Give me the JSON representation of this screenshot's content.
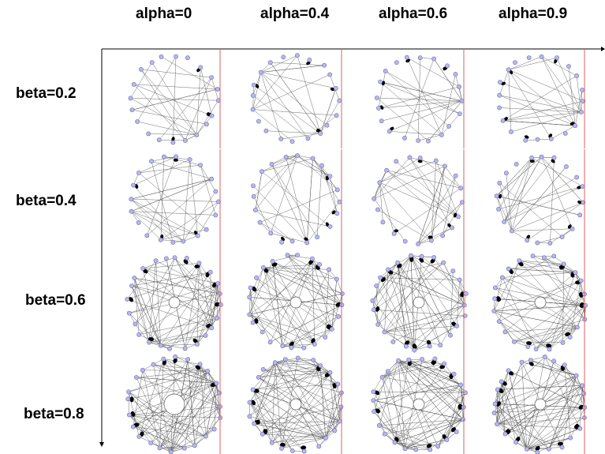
{
  "columns": [
    {
      "label": "alpha=0"
    },
    {
      "label": "alpha=0.4"
    },
    {
      "label": "alpha=0.6"
    },
    {
      "label": "alpha=0.9"
    }
  ],
  "rows": [
    {
      "label": "beta=0.2"
    },
    {
      "label": "beta=0.4"
    },
    {
      "label": "beta=0.6"
    },
    {
      "label": "beta=0.8"
    }
  ],
  "colors": {
    "edge": "#555555",
    "node_fill": "#b8b8f0",
    "node_stroke": "#6a6ab0",
    "arrowhead": "#000000",
    "divider": "#e06060",
    "axis": "#000000"
  }
}
